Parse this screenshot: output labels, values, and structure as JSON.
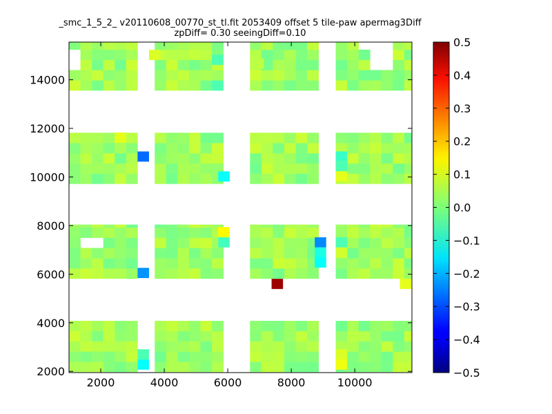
{
  "chart_data": {
    "type": "heatmap",
    "title_lines": [
      "_smc_1_5_2_ v20110608_00770_st_tl.fit 2053409 offset 5 tile-paw apermag3Diff",
      "zpDiff= 0.30 seeingDiff=0.10"
    ],
    "xlabel": "",
    "ylabel": "",
    "xlim": [
      1000,
      11800
    ],
    "ylim": [
      1950,
      15550
    ],
    "xticks": [
      2000,
      4000,
      6000,
      8000,
      10000
    ],
    "xtick_labels": [
      "2000",
      "4000",
      "6000",
      "8000",
      "10000"
    ],
    "yticks": [
      2000,
      4000,
      6000,
      8000,
      10000,
      12000,
      14000
    ],
    "ytick_labels": [
      "2000",
      "4000",
      "6000",
      "8000",
      "10000",
      "12000",
      "14000"
    ],
    "grid": false,
    "colormap": "jet",
    "colorbar": {
      "vmin": -0.5,
      "vmax": 0.5,
      "ticks": [
        0.5,
        0.4,
        0.3,
        0.2,
        0.1,
        0.0,
        -0.1,
        -0.2,
        -0.3,
        -0.4,
        -0.5
      ],
      "tick_labels": [
        "0.5",
        "0.4",
        "0.3",
        "0.2",
        "0.1",
        "0.0",
        "−0.1",
        "−0.2",
        "−0.3",
        "−0.4",
        "−0.5"
      ]
    },
    "cell_size": [
      360,
      420
    ],
    "block_x_ranges": [
      [
        1000,
        3160
      ],
      [
        3700,
        5860
      ],
      [
        6700,
        8860
      ],
      [
        9400,
        11800
      ]
    ],
    "block_y_ranges": [
      [
        1980,
        4080
      ],
      [
        5820,
        8040
      ],
      [
        9720,
        11820
      ],
      [
        13560,
        15560
      ]
    ],
    "typical_value": 0.03,
    "highlighted_cells": [
      {
        "x": 3340,
        "y": 10840,
        "value": -0.27
      },
      {
        "x": 5880,
        "y": 10020,
        "value": -0.12
      },
      {
        "x": 2620,
        "y": 11620,
        "value": 0.1
      },
      {
        "x": 9580,
        "y": 10020,
        "value": 0.1
      },
      {
        "x": 9580,
        "y": 10840,
        "value": -0.07
      },
      {
        "x": 9580,
        "y": 10460,
        "value": -0.05
      },
      {
        "x": 3340,
        "y": 6050,
        "value": -0.23
      },
      {
        "x": 3340,
        "y": 2280,
        "value": -0.12
      },
      {
        "x": 3340,
        "y": 2700,
        "value": -0.05
      },
      {
        "x": 5880,
        "y": 7730,
        "value": 0.13
      },
      {
        "x": 5880,
        "y": 7310,
        "value": -0.06
      },
      {
        "x": 8920,
        "y": 7310,
        "value": -0.24
      },
      {
        "x": 8920,
        "y": 6890,
        "value": -0.1
      },
      {
        "x": 8920,
        "y": 6480,
        "value": -0.12
      },
      {
        "x": 7560,
        "y": 5600,
        "value": 0.47
      },
      {
        "x": 11600,
        "y": 5600,
        "value": 0.1
      },
      {
        "x": 9580,
        "y": 7310,
        "value": -0.05
      },
      {
        "x": 9580,
        "y": 6890,
        "value": 0.08
      },
      {
        "x": 9580,
        "y": 2280,
        "value": 0.11
      },
      {
        "x": 9580,
        "y": 2700,
        "value": 0.09
      },
      {
        "x": 3700,
        "y": 15020,
        "value": 0.09
      },
      {
        "x": 5680,
        "y": 14820,
        "value": -0.05
      },
      {
        "x": 5680,
        "y": 13760,
        "value": -0.05
      },
      {
        "x": 6960,
        "y": 14660,
        "value": 0.06
      }
    ],
    "missing_cells": [
      {
        "x": 1000,
        "y": 14850
      },
      {
        "x": 1740,
        "y": 7310
      },
      {
        "x": 10780,
        "y": 14660
      },
      {
        "x": 10780,
        "y": 14900
      },
      {
        "x": 10780,
        "y": 15200
      },
      {
        "x": 10420,
        "y": 15450
      },
      {
        "x": 11240,
        "y": 5600
      }
    ]
  }
}
